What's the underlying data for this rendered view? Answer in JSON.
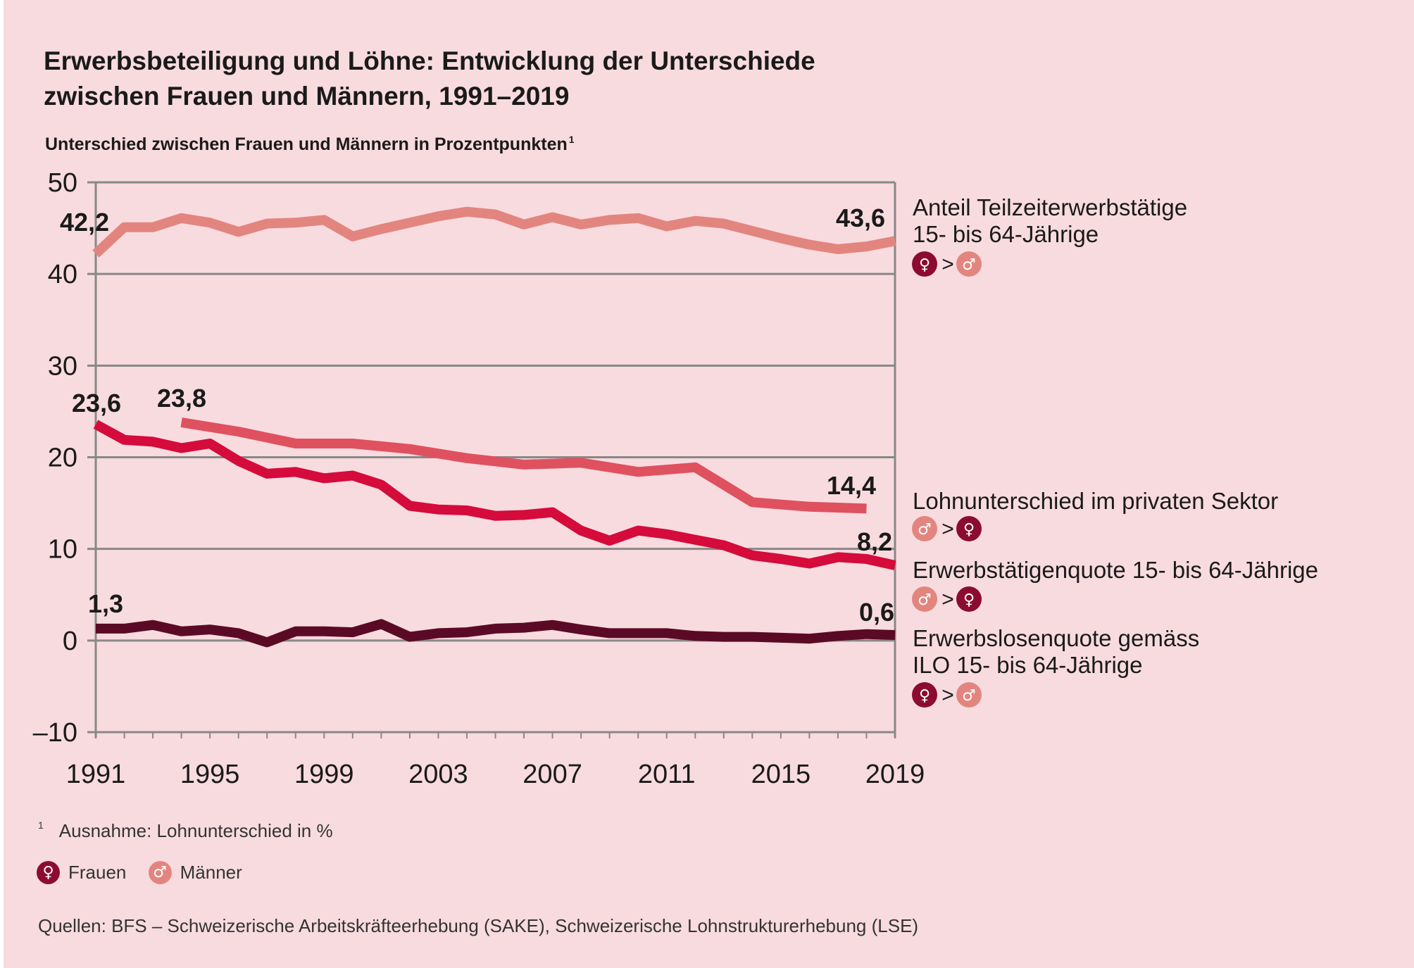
{
  "title_line1": "Erwerbsbeteiligung und Löhne: Entwicklung der Unterschiede",
  "title_line2": "zwischen Frauen und Männern, 1991–2019",
  "subtitle": "Unterschied zwischen Frauen und Männern in Prozentpunkten",
  "subtitle_footnote_mark": "1",
  "footnote": {
    "mark": "1",
    "text": "Ausnahme: Lohnunterschied in %"
  },
  "legend": [
    {
      "symbol": "♀",
      "label": "Frauen",
      "color": "#8c0b31"
    },
    {
      "symbol": "♂",
      "label": "Männer",
      "color": "#e3857f"
    }
  ],
  "source": "Quellen: BFS – Schweizerische Arbeitskräfteerhebung (SAKE), Schweizerische Lohnstrukturerhebung (LSE)",
  "chart_data": {
    "type": "line",
    "title": "Erwerbsbeteiligung und Löhne: Entwicklung der Unterschiede zwischen Frauen und Männern, 1991–2019",
    "ylabel": "Unterschied zwischen Frauen und Männern in Prozentpunkten",
    "xlim": [
      1991,
      2019
    ],
    "ylim": [
      -10,
      50
    ],
    "x_ticks": [
      1991,
      1995,
      1999,
      2003,
      2007,
      2011,
      2015,
      2019
    ],
    "y_ticks": [
      -10,
      0,
      10,
      20,
      30,
      40,
      50
    ],
    "y_tick_labels": [
      "–10",
      "0",
      "10",
      "20",
      "30",
      "40",
      "50"
    ],
    "grid": "horizontal",
    "gt_symbol": ">",
    "series": [
      {
        "name": "Anteil Teilzeiterwerbstätige 15- bis 64-Jährige",
        "name_lines": [
          "Anteil Teilzeiterwerbstätige",
          "15- bis 64-Jährige"
        ],
        "relation": [
          "♀",
          "♂"
        ],
        "color": "#e3857f",
        "x": [
          1991,
          1992,
          1993,
          1994,
          1995,
          1996,
          1997,
          1998,
          1999,
          2000,
          2001,
          2002,
          2003,
          2004,
          2005,
          2006,
          2007,
          2008,
          2009,
          2010,
          2011,
          2012,
          2013,
          2014,
          2015,
          2016,
          2017,
          2018,
          2019
        ],
        "values": [
          42.2,
          45.1,
          45.1,
          46.1,
          45.6,
          44.6,
          45.5,
          45.6,
          45.9,
          44.1,
          44.9,
          45.6,
          46.3,
          46.8,
          46.5,
          45.4,
          46.2,
          45.4,
          45.9,
          46.1,
          45.2,
          45.8,
          45.5,
          44.7,
          43.9,
          43.2,
          42.7,
          43.0,
          43.6
        ],
        "start_label": "42,2",
        "end_label": "43,6"
      },
      {
        "name": "Lohnunterschied im privaten Sektor",
        "name_lines": [
          "Lohnunterschied im privaten Sektor"
        ],
        "relation": [
          "♂",
          "♀"
        ],
        "color": "#e0515f",
        "x": [
          1994,
          1996,
          1998,
          2000,
          2002,
          2004,
          2006,
          2008,
          2010,
          2012,
          2014,
          2016,
          2018
        ],
        "values": [
          23.8,
          22.8,
          21.5,
          21.5,
          20.9,
          19.9,
          19.2,
          19.4,
          18.4,
          18.9,
          15.1,
          14.6,
          14.4
        ],
        "start_label": "23,8",
        "end_label": "14,4"
      },
      {
        "name": "Erwerbstätigenquote 15- bis 64-Jährige",
        "name_lines": [
          "Erwerbstätigenquote 15- bis 64-Jährige"
        ],
        "relation": [
          "♂",
          "♀"
        ],
        "color": "#d50b3b",
        "x": [
          1991,
          1992,
          1993,
          1994,
          1995,
          1996,
          1997,
          1998,
          1999,
          2000,
          2001,
          2002,
          2003,
          2004,
          2005,
          2006,
          2007,
          2008,
          2009,
          2010,
          2011,
          2012,
          2013,
          2014,
          2015,
          2016,
          2017,
          2018,
          2019
        ],
        "values": [
          23.6,
          21.9,
          21.7,
          21.0,
          21.5,
          19.6,
          18.2,
          18.4,
          17.7,
          18.0,
          17.0,
          14.7,
          14.3,
          14.2,
          13.6,
          13.7,
          14.0,
          12.0,
          10.9,
          12.0,
          11.6,
          11.0,
          10.4,
          9.3,
          8.9,
          8.4,
          9.1,
          8.9,
          8.2
        ],
        "start_label": "23,6",
        "end_label": "8,2"
      },
      {
        "name": "Erwerbslosenquote gemäss ILO 15- bis 64-Jährige",
        "name_lines": [
          "Erwerbslosenquote gemäss",
          "ILO 15- bis 64-Jährige"
        ],
        "relation": [
          "♀",
          "♂"
        ],
        "color": "#5b0a26",
        "x": [
          1991,
          1992,
          1993,
          1994,
          1995,
          1996,
          1997,
          1998,
          1999,
          2000,
          2001,
          2002,
          2003,
          2004,
          2005,
          2006,
          2007,
          2008,
          2009,
          2010,
          2011,
          2012,
          2013,
          2014,
          2015,
          2016,
          2017,
          2018,
          2019
        ],
        "values": [
          1.3,
          1.3,
          1.7,
          1.0,
          1.2,
          0.8,
          -0.2,
          1.0,
          1.0,
          0.9,
          1.8,
          0.4,
          0.8,
          0.9,
          1.3,
          1.4,
          1.7,
          1.2,
          0.8,
          0.8,
          0.8,
          0.5,
          0.4,
          0.4,
          0.3,
          0.2,
          0.5,
          0.7,
          0.6
        ],
        "start_label": "1,3",
        "end_label": "0,6"
      }
    ]
  }
}
